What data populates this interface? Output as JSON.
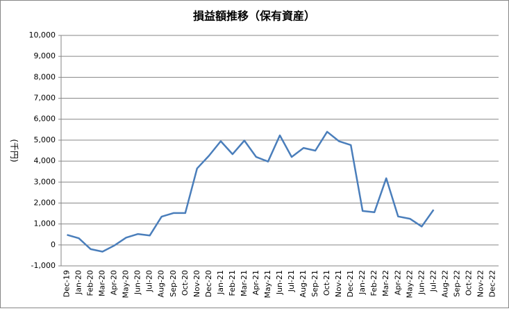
{
  "chart_data": {
    "type": "line",
    "title": "損益額推移（保有資産）",
    "y_label": "(千円)",
    "categories": [
      "Dec-19",
      "Jan-20",
      "Feb-20",
      "Mar-20",
      "Apr-20",
      "May-20",
      "Jun-20",
      "Jul-20",
      "Aug-20",
      "Sep-20",
      "Oct-20",
      "Nov-20",
      "Dec-20",
      "Jan-21",
      "Feb-21",
      "Mar-21",
      "Apr-21",
      "May-21",
      "Jun-21",
      "Jul-21",
      "Aug-21",
      "Sep-21",
      "Oct-21",
      "Nov-21",
      "Dec-21",
      "Jan-22",
      "Feb-22",
      "Mar-22",
      "Apr-22",
      "May-22",
      "Jun-22",
      "Jul-22",
      "Aug-22",
      "Sep-22",
      "Oct-22",
      "Nov-22",
      "Dec-22"
    ],
    "values": [
      480,
      320,
      -200,
      -320,
      -30,
      350,
      520,
      450,
      1350,
      1520,
      1520,
      3650,
      4250,
      4950,
      4330,
      4980,
      4200,
      3980,
      5230,
      4200,
      4630,
      4500,
      5400,
      4950,
      4770,
      1620,
      1560,
      3180,
      1360,
      1250,
      880,
      1680,
      null,
      null,
      null,
      null,
      null
    ],
    "color": "#4a7ebb",
    "ylim": [
      -1000,
      10000
    ],
    "yticks": [
      {
        "value": -1000,
        "label": "-1,000"
      },
      0,
      {
        "value": 1000,
        "label": "1,000"
      },
      {
        "value": 2000,
        "label": "2,000"
      },
      {
        "value": 3000,
        "label": "3,000"
      },
      {
        "value": 4000,
        "label": "4,000"
      },
      {
        "value": 5000,
        "label": "5,000"
      },
      {
        "value": 6000,
        "label": "6,000"
      },
      {
        "value": 7000,
        "label": "7,000"
      },
      {
        "value": 8000,
        "label": "8,000"
      },
      {
        "value": 9000,
        "label": "9,000"
      },
      {
        "value": 10000,
        "label": "10,000"
      }
    ],
    "grid": true
  }
}
